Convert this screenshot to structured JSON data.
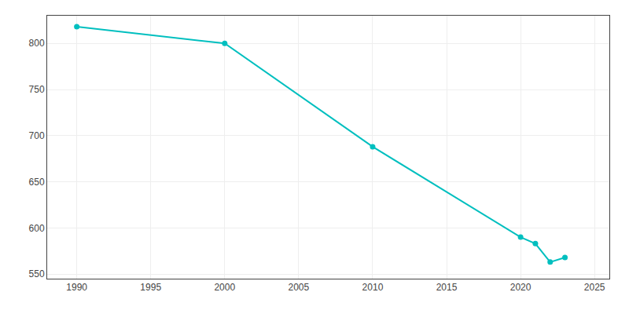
{
  "chart_data": {
    "type": "line",
    "x": [
      1990,
      2000,
      2010,
      2020,
      2021,
      2022,
      2023
    ],
    "values": [
      818,
      800,
      688,
      590,
      583,
      563,
      568
    ],
    "color": "#00BFBF",
    "marker": "circle",
    "xlim": [
      1988,
      2026
    ],
    "ylim": [
      545,
      830
    ],
    "xticks": [
      1990,
      1995,
      2000,
      2005,
      2010,
      2015,
      2020,
      2025
    ],
    "yticks": [
      550,
      600,
      650,
      700,
      750,
      800
    ],
    "grid": true
  }
}
